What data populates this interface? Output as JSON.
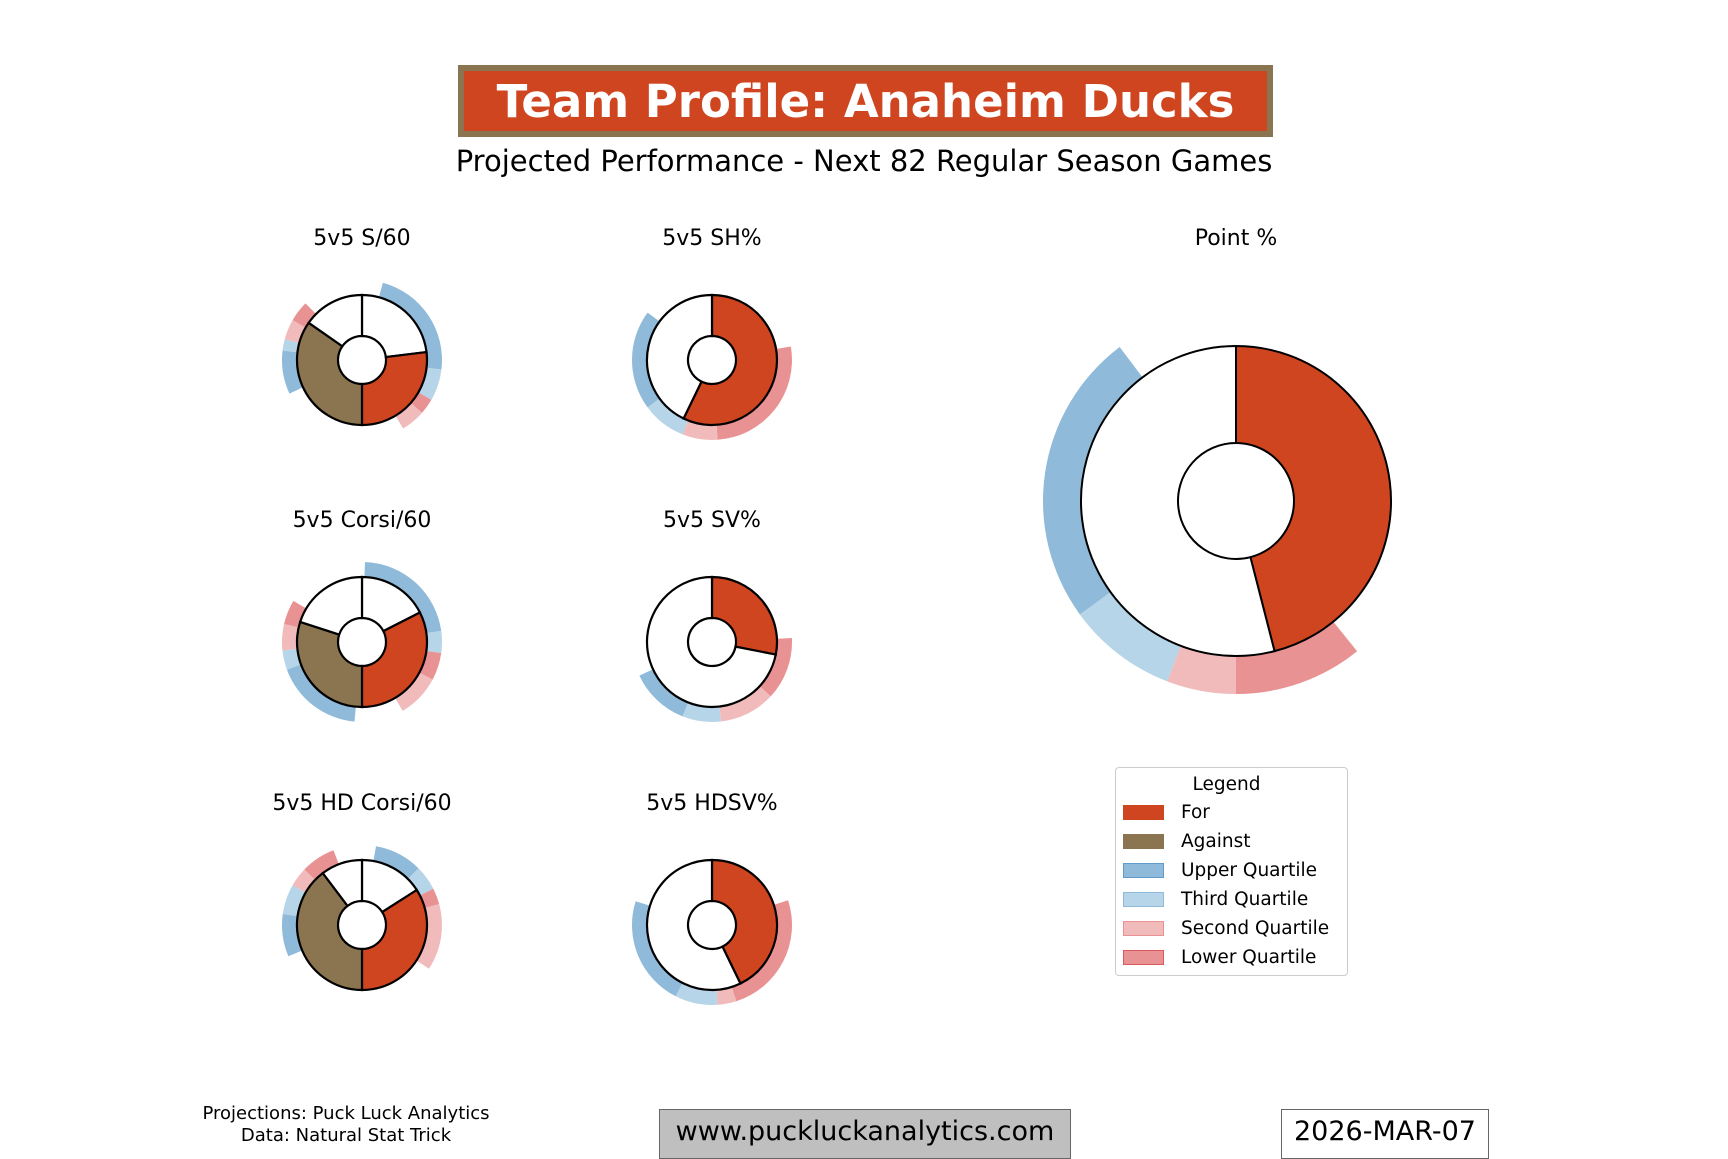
{
  "header": {
    "title": "Team Profile: Anaheim Ducks",
    "subtitle": "Projected Performance - Next 82 Regular Season Games"
  },
  "colors": {
    "for": "#cf4520",
    "against": "#8b7450",
    "upper": "#8fbad9",
    "third": "#b7d5e8",
    "second": "#f1bbbb",
    "lower": "#e99294",
    "title_border": "#8b7450"
  },
  "chart_data": [
    {
      "type": "pie",
      "title": "5v5 S/60",
      "for_fraction_of_half": 0.539,
      "against_fraction_of_half": 0.694,
      "quartile_bands": [
        {
          "q": "upper",
          "start": 0.042,
          "end": 0.269
        },
        {
          "q": "third",
          "start": 0.269,
          "end": 0.333
        },
        {
          "q": "lower",
          "start": 0.333,
          "end": 0.365
        },
        {
          "q": "second",
          "start": 0.365,
          "end": 0.414
        },
        {
          "q": "upper",
          "start": 0.681,
          "end": 0.769
        },
        {
          "q": "third",
          "start": 0.769,
          "end": 0.792
        },
        {
          "q": "second",
          "start": 0.792,
          "end": 0.833
        },
        {
          "q": "lower",
          "start": 0.833,
          "end": 0.875
        }
      ]
    },
    {
      "type": "pie",
      "title": "5v5 Corsi/60",
      "for_fraction_of_half": 0.65,
      "against_fraction_of_half": 0.6,
      "quartile_bands": [
        {
          "q": "upper",
          "start": 0.006,
          "end": 0.228
        },
        {
          "q": "third",
          "start": 0.228,
          "end": 0.272
        },
        {
          "q": "lower",
          "start": 0.272,
          "end": 0.328
        },
        {
          "q": "second",
          "start": 0.328,
          "end": 0.415
        },
        {
          "q": "upper",
          "start": 0.515,
          "end": 0.694
        },
        {
          "q": "third",
          "start": 0.694,
          "end": 0.733
        },
        {
          "q": "second",
          "start": 0.733,
          "end": 0.786
        },
        {
          "q": "lower",
          "start": 0.786,
          "end": 0.836
        }
      ]
    },
    {
      "type": "pie",
      "title": "5v5 HD Corsi/60",
      "for_fraction_of_half": 0.681,
      "against_fraction_of_half": 0.794,
      "quartile_bands": [
        {
          "q": "upper",
          "start": 0.028,
          "end": 0.125
        },
        {
          "q": "third",
          "start": 0.125,
          "end": 0.175
        },
        {
          "q": "lower",
          "start": 0.175,
          "end": 0.208
        },
        {
          "q": "second",
          "start": 0.208,
          "end": 0.342
        },
        {
          "q": "upper",
          "start": 0.686,
          "end": 0.772
        },
        {
          "q": "third",
          "start": 0.772,
          "end": 0.833
        },
        {
          "q": "second",
          "start": 0.833,
          "end": 0.872
        },
        {
          "q": "lower",
          "start": 0.872,
          "end": 0.942
        }
      ]
    },
    {
      "type": "pie",
      "title": "5v5 SH%",
      "for_fraction": 0.572,
      "quartile_bands": [
        {
          "q": "lower",
          "start": 0.223,
          "end": 0.489
        },
        {
          "q": "second",
          "start": 0.489,
          "end": 0.56
        },
        {
          "q": "third",
          "start": 0.56,
          "end": 0.649
        },
        {
          "q": "upper",
          "start": 0.649,
          "end": 0.851
        }
      ]
    },
    {
      "type": "pie",
      "title": "5v5 SV%",
      "for_fraction": 0.281,
      "quartile_bands": [
        {
          "q": "lower",
          "start": 0.242,
          "end": 0.369
        },
        {
          "q": "second",
          "start": 0.369,
          "end": 0.482
        },
        {
          "q": "third",
          "start": 0.482,
          "end": 0.56
        },
        {
          "q": "upper",
          "start": 0.56,
          "end": 0.681
        }
      ]
    },
    {
      "type": "pie",
      "title": "5v5 HDSV%",
      "for_fraction": 0.428,
      "quartile_bands": [
        {
          "q": "lower",
          "start": 0.2,
          "end": 0.451
        },
        {
          "q": "second",
          "start": 0.451,
          "end": 0.489
        },
        {
          "q": "third",
          "start": 0.489,
          "end": 0.575
        },
        {
          "q": "upper",
          "start": 0.575,
          "end": 0.798
        }
      ]
    },
    {
      "type": "pie",
      "title": "Point %",
      "for_fraction": 0.46,
      "quartile_bands": [
        {
          "q": "lower",
          "start": 0.392,
          "end": 0.5
        },
        {
          "q": "second",
          "start": 0.5,
          "end": 0.558
        },
        {
          "q": "third",
          "start": 0.558,
          "end": 0.65
        },
        {
          "q": "upper",
          "start": 0.65,
          "end": 0.897
        }
      ]
    }
  ],
  "legend": {
    "title": "Legend",
    "items": [
      {
        "label": "For",
        "key": "for"
      },
      {
        "label": "Against",
        "key": "against"
      },
      {
        "label": "Upper Quartile",
        "key": "upper"
      },
      {
        "label": "Third Quartile",
        "key": "third"
      },
      {
        "label": "Second Quartile",
        "key": "second"
      },
      {
        "label": "Lower Quartile",
        "key": "lower"
      }
    ]
  },
  "footer": {
    "credit_projections": "Projections: Puck Luck Analytics",
    "credit_data": "Data: Natural Stat Trick",
    "url": "www.puckluckanalytics.com",
    "date": "2026-MAR-07"
  }
}
